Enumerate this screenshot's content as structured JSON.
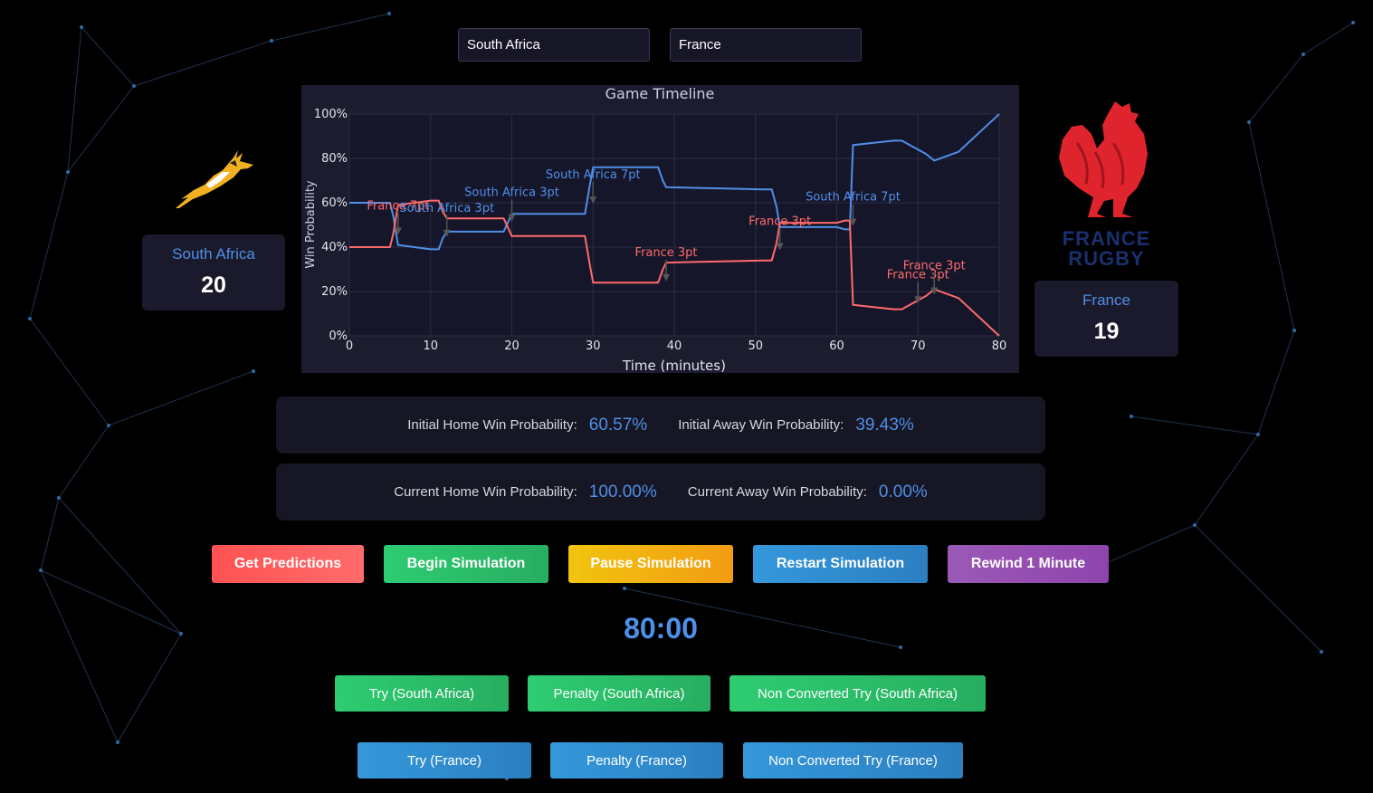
{
  "selectors": {
    "home": "South Africa",
    "away": "France"
  },
  "home": {
    "name": "South Africa",
    "score": "20"
  },
  "away": {
    "name": "France",
    "score": "19",
    "logo_text": [
      "FRANCE",
      "RUGBY"
    ]
  },
  "colors": {
    "home": "#4f8fe6",
    "away": "#ff6b6b",
    "background": "#000000",
    "panel": "#161624"
  },
  "initial": {
    "home_label": "Initial Home Win Probability:",
    "home_value": "60.57%",
    "away_label": "Initial Away Win Probability:",
    "away_value": "39.43%"
  },
  "current": {
    "home_label": "Current Home Win Probability:",
    "home_value": "100.00%",
    "away_label": "Current Away Win Probability:",
    "away_value": "0.00%"
  },
  "controls": {
    "get_predictions": "Get Predictions",
    "begin": "Begin Simulation",
    "pause": "Pause Simulation",
    "restart": "Restart Simulation",
    "rewind": "Rewind 1 Minute"
  },
  "clock": "80:00",
  "events": {
    "try_home": "Try (South Africa)",
    "pen_home": "Penalty (South Africa)",
    "nct_home": "Non Converted Try (South Africa)",
    "try_away": "Try (France)",
    "pen_away": "Penalty (France)",
    "nct_away": "Non Converted Try (France)"
  },
  "chart_data": {
    "type": "line",
    "title": "Game Timeline",
    "xlabel": "Time (minutes)",
    "ylabel": "Win Probability",
    "xlim": [
      0,
      80
    ],
    "ylim": [
      0,
      100
    ],
    "xticks": [
      0,
      10,
      20,
      30,
      40,
      50,
      60,
      70,
      80
    ],
    "yticks": [
      0,
      20,
      40,
      60,
      80,
      100
    ],
    "ytick_labels": [
      "0%",
      "20%",
      "40%",
      "60%",
      "80%",
      "100%"
    ],
    "grid": true,
    "series": [
      {
        "name": "South Africa",
        "color": "#4f8fe6",
        "x": [
          0,
          5,
          5.4,
          6,
          10,
          11,
          11.5,
          12,
          18,
          19,
          19.5,
          20,
          28,
          29,
          29.6,
          30,
          37,
          38,
          38.6,
          39,
          51,
          52,
          52.6,
          53,
          60,
          61,
          61.6,
          62,
          67,
          68,
          69,
          70,
          71,
          72,
          75,
          80
        ],
        "y": [
          60,
          60,
          54,
          41,
          39,
          39,
          44,
          47,
          47,
          47,
          51,
          55,
          55,
          55,
          68,
          76,
          76,
          76,
          70,
          67,
          66,
          66,
          58,
          49,
          49,
          48,
          48,
          86,
          88,
          88,
          86,
          84,
          82,
          79,
          83,
          100
        ]
      },
      {
        "name": "France",
        "color": "#ff6b6b",
        "x": [
          0,
          5,
          5.4,
          6,
          10,
          11,
          11.5,
          12,
          18,
          19,
          19.5,
          20,
          28,
          29,
          29.6,
          30,
          37,
          38,
          38.6,
          39,
          51,
          52,
          52.6,
          53,
          60,
          61,
          61.6,
          62,
          67,
          68,
          69,
          70,
          71,
          72,
          75,
          80
        ],
        "y": [
          40,
          40,
          46,
          59,
          61,
          61,
          56,
          53,
          53,
          53,
          49,
          45,
          45,
          45,
          32,
          24,
          24,
          24,
          30,
          33,
          34,
          34,
          42,
          51,
          51,
          52,
          52,
          14,
          12,
          12,
          14,
          16,
          18,
          21,
          17,
          0
        ]
      }
    ],
    "annotations": [
      {
        "text": "France 7pt",
        "x": 6,
        "y": 57,
        "team": "away"
      },
      {
        "text": "South Africa 3pt",
        "x": 12,
        "y": 56,
        "team": "home"
      },
      {
        "text": "South Africa 3pt",
        "x": 20,
        "y": 63,
        "team": "home"
      },
      {
        "text": "South Africa 7pt",
        "x": 30,
        "y": 71,
        "team": "home"
      },
      {
        "text": "France 3pt",
        "x": 39,
        "y": 36,
        "team": "away"
      },
      {
        "text": "France 3pt",
        "x": 53,
        "y": 50,
        "team": "away"
      },
      {
        "text": "South Africa 7pt",
        "x": 62,
        "y": 61,
        "team": "home"
      },
      {
        "text": "France 3pt",
        "x": 70,
        "y": 26,
        "team": "away"
      },
      {
        "text": "France 3pt",
        "x": 72,
        "y": 30,
        "team": "away"
      }
    ]
  }
}
